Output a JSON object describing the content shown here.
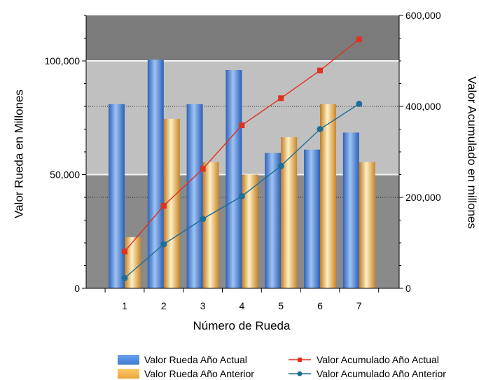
{
  "chart_data": {
    "type": "bar",
    "xlabel": "Número de Rueda",
    "ylabel": "Valor Rueda en Millones",
    "y2label": "Valor Acumulado en millones",
    "categories": [
      "1",
      "2",
      "3",
      "4",
      "5",
      "6",
      "7"
    ],
    "ylim": [
      0,
      120000
    ],
    "y2lim": [
      0,
      600000
    ],
    "yticks": [
      "0",
      "50,000",
      "100,000"
    ],
    "y2ticks": [
      "0",
      "200,000",
      "400,000",
      "600,000"
    ],
    "y_tick_values": [
      0,
      50000,
      100000
    ],
    "y2_tick_values": [
      0,
      200000,
      400000,
      600000
    ],
    "bands": [
      {
        "from": 0,
        "to": 50000,
        "color": "#8a8a8a"
      },
      {
        "from": 50000,
        "to": 100000,
        "color": "#c0c0c0"
      },
      {
        "from": 100000,
        "to": 120000,
        "color": "#7b7b7b"
      }
    ],
    "series": [
      {
        "name": "Valor Rueda Año Actual",
        "kind": "bar",
        "axis": "left",
        "color": "#4a86d8",
        "values": [
          81000,
          100500,
          81000,
          96000,
          59500,
          61000,
          68500
        ]
      },
      {
        "name": "Valor Rueda Año Anterior",
        "kind": "bar",
        "axis": "left",
        "color": "#f0b356",
        "values": [
          22500,
          74500,
          55500,
          50000,
          66500,
          81000,
          55500
        ]
      },
      {
        "name": "Valor Acumulado Año Actual",
        "kind": "line",
        "axis": "right",
        "color": "#e0301e",
        "marker": "square",
        "values": [
          81000,
          181500,
          262500,
          358500,
          418000,
          479000,
          547500
        ]
      },
      {
        "name": "Valor Acumulado Año Anterior",
        "kind": "line",
        "axis": "right",
        "color": "#1f6e95",
        "marker": "circle",
        "values": [
          22500,
          97000,
          152500,
          202500,
          269000,
          350000,
          405500
        ]
      }
    ],
    "legend": "bottom",
    "grid": true
  }
}
